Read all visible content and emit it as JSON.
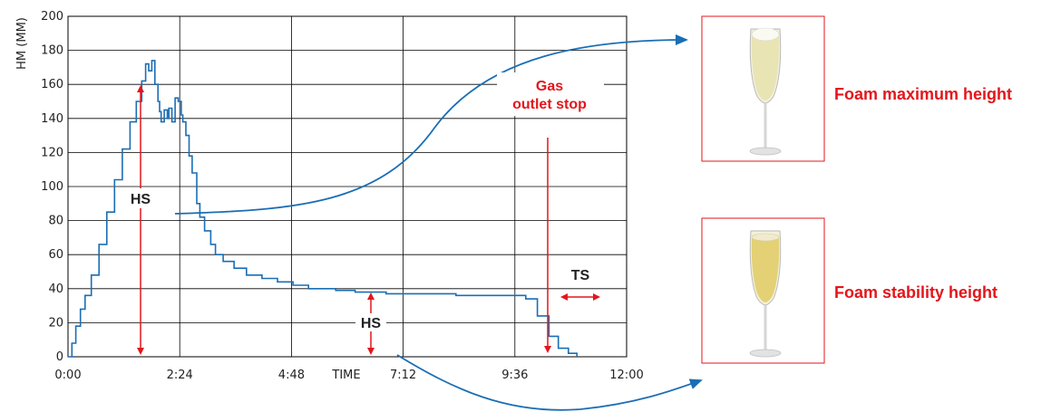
{
  "chart_data": {
    "type": "line",
    "xlabel": "TIME",
    "ylabel": "HM (MM)",
    "xlim": [
      0,
      720
    ],
    "ylim": [
      0,
      200
    ],
    "x_ticks": [
      "0:00",
      "2:24",
      "4:48",
      "7:12",
      "9:36",
      "12:00"
    ],
    "x_tick_values": [
      0,
      144,
      288,
      432,
      576,
      720
    ],
    "y_ticks": [
      0,
      20,
      40,
      60,
      80,
      100,
      120,
      140,
      160,
      180,
      200
    ],
    "grid": true,
    "series": [
      {
        "color": "#1a6eb5",
        "x": [
          0,
          5,
          10,
          16,
          22,
          30,
          40,
          50,
          60,
          70,
          80,
          88,
          95,
          100,
          104,
          108,
          112,
          116,
          118,
          120,
          124,
          128,
          130,
          134,
          138,
          142,
          146,
          148,
          152,
          156,
          160,
          166,
          170,
          176,
          184,
          190,
          200,
          214,
          230,
          250,
          270,
          290,
          310,
          325,
          345,
          370,
          390,
          410,
          432,
          460,
          500,
          530,
          560,
          576,
          590,
          605,
          620,
          632,
          645,
          656
        ],
        "y": [
          0,
          8,
          18,
          28,
          36,
          48,
          66,
          85,
          104,
          122,
          138,
          150,
          162,
          172,
          168,
          174,
          160,
          150,
          144,
          138,
          145,
          140,
          146,
          138,
          152,
          150,
          142,
          138,
          130,
          118,
          108,
          90,
          82,
          74,
          66,
          60,
          56,
          52,
          48,
          46,
          44,
          42,
          40,
          40,
          39,
          38,
          38,
          37,
          37,
          37,
          36,
          36,
          36,
          36,
          34,
          24,
          12,
          5,
          2,
          0
        ]
      }
    ],
    "annotations": {
      "hs_top": "HS",
      "hs_bottom": "HS",
      "gas_line1": "Gas",
      "gas_line2": "outlet stop",
      "ts": "TS"
    }
  },
  "side": {
    "max_label": "Foam maximum height",
    "stability_label": "Foam stability height"
  },
  "colors": {
    "series": "#1a6eb5",
    "annotation": "#e3161b",
    "panel_border": "#e3161b",
    "grid": "#000000"
  }
}
